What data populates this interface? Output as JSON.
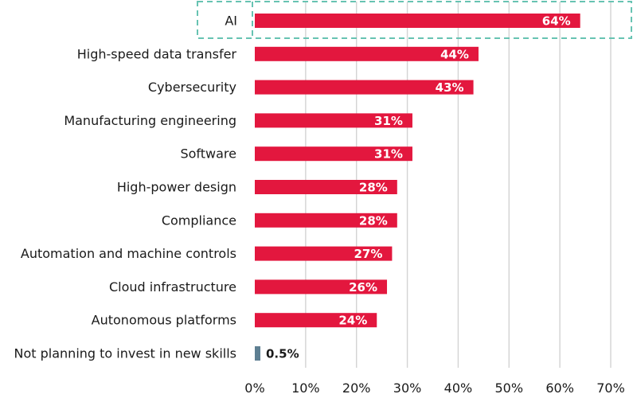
{
  "chart_data": {
    "type": "bar",
    "orientation": "horizontal",
    "categories": [
      "AI",
      "High-speed data transfer",
      "Cybersecurity",
      "Manufacturing engineering",
      "Software",
      "High-power design",
      "Compliance",
      "Automation and machine controls",
      "Cloud infrastructure",
      "Autonomous platforms",
      "Not planning to invest in new skills"
    ],
    "values": [
      64,
      44,
      43,
      31,
      31,
      28,
      28,
      27,
      26,
      24,
      0.5
    ],
    "value_labels": [
      "64%",
      "44%",
      "43%",
      "31%",
      "31%",
      "28%",
      "28%",
      "27%",
      "26%",
      "24%",
      "0.5%"
    ],
    "xlim": [
      0,
      70
    ],
    "x_ticks": [
      0,
      10,
      20,
      30,
      40,
      50,
      60,
      70
    ],
    "x_tick_labels": [
      "0%",
      "10%",
      "20%",
      "30%",
      "40%",
      "50%",
      "60%",
      "70%"
    ],
    "grid": "vertical",
    "highlighted_category": "AI",
    "colors": {
      "bar": "#e3173e",
      "bar_muted": "#5e7f92",
      "highlight_box": "#67c3b2",
      "grid": "#d3d3d3",
      "text": "#1a1a1a"
    }
  }
}
